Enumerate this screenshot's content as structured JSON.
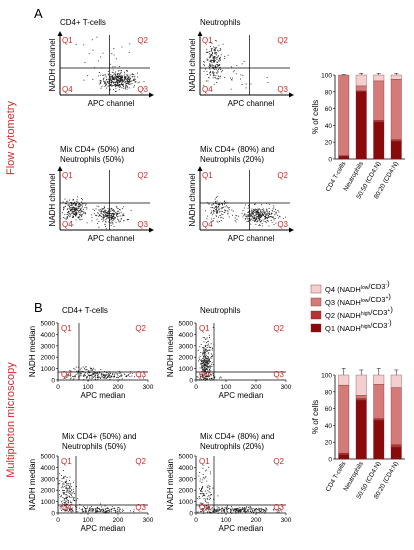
{
  "panels": [
    {
      "letter": "A",
      "section_label": "Flow cytometry",
      "x_axis_label": "APC channel",
      "y_axis_label": "NADH channel",
      "quadrants": [
        "Q1",
        "Q2",
        "Q4",
        "Q3"
      ],
      "plots": [
        {
          "title_lines": [
            "CD4+ T-cells"
          ]
        },
        {
          "title_lines": [
            "Neutrophils"
          ]
        },
        {
          "title_lines": [
            "Mix CD4+ (50%) and",
            "Neutrophils (50%)"
          ]
        },
        {
          "title_lines": [
            "Mix CD4+ (80%) and",
            "Neutrophils (20%)"
          ]
        }
      ]
    },
    {
      "letter": "B",
      "section_label": "Multiphoton microscopy",
      "x_axis_label": "APC median",
      "y_axis_label": "NADH median",
      "quadrants": [
        "Q1",
        "Q2",
        "Q4",
        "Q3"
      ],
      "plots": [
        {
          "title_lines": [
            "CD4+ T-cells"
          ]
        },
        {
          "title_lines": [
            "Neutrophils"
          ]
        },
        {
          "title_lines": [
            "Mix CD4+ (50%) and",
            "Neutrophils (50%)"
          ]
        },
        {
          "title_lines": [
            "Mix CD4+ (80%) and",
            "Neutrophils (20%)"
          ]
        }
      ]
    }
  ],
  "legend": [
    {
      "label": "Q4 (NADH",
      "sup1": "low",
      "mid": "/CD3",
      "sup2": "-",
      "end": ")",
      "color": "#f4cfcf"
    },
    {
      "label": "Q3 (NADH",
      "sup1": "low",
      "mid": "/CD3",
      "sup2": "+",
      "end": ")",
      "color": "#d47a78"
    },
    {
      "label": "Q2 (NADH",
      "sup1": "high",
      "mid": "/CD3",
      "sup2": "+",
      "end": ")",
      "color": "#b73234"
    },
    {
      "label": "Q1 (NADH",
      "sup1": "high",
      "mid": "/CD3",
      "sup2": "-",
      "end": ")",
      "color": "#8a0a0c"
    }
  ],
  "colors": {
    "accent_red": "#d22b2b",
    "dot": "#1a1a1a"
  },
  "chart_data": [
    {
      "type": "scatter",
      "panel": "B",
      "title": "CD4+ T-cells",
      "xlabel": "APC median",
      "ylabel": "NADH median",
      "xlim": [
        0,
        300
      ],
      "ylim": [
        0,
        5000
      ],
      "xticks": [
        0,
        100,
        200,
        300
      ],
      "yticks": [
        0,
        1000,
        2000,
        3000,
        4000,
        5000
      ],
      "gates": {
        "x": 70,
        "y": 700
      },
      "clusters": [
        {
          "cx": 130,
          "cy": 400,
          "sx": 55,
          "sy": 180,
          "n": 200
        },
        {
          "cx": 90,
          "cy": 900,
          "sx": 30,
          "sy": 250,
          "n": 50
        }
      ]
    },
    {
      "type": "scatter",
      "panel": "B",
      "title": "Neutrophils",
      "xlabel": "APC median",
      "ylabel": "NADH median",
      "xlim": [
        0,
        300
      ],
      "ylim": [
        0,
        5000
      ],
      "xticks": [
        0,
        100,
        200,
        300
      ],
      "yticks": [
        0,
        1000,
        2000,
        3000,
        4000,
        5000
      ],
      "gates": {
        "x": 60,
        "y": 700
      },
      "clusters": [
        {
          "cx": 30,
          "cy": 1400,
          "sx": 10,
          "sy": 800,
          "n": 260
        },
        {
          "cx": 40,
          "cy": 3000,
          "sx": 10,
          "sy": 600,
          "n": 40
        },
        {
          "cx": 45,
          "cy": 300,
          "sx": 20,
          "sy": 150,
          "n": 30
        }
      ]
    },
    {
      "type": "scatter",
      "panel": "B",
      "title": "Mix CD4+ (50%) and Neutrophils (50%)",
      "xlabel": "APC median",
      "ylabel": "NADH median",
      "xlim": [
        0,
        300
      ],
      "ylim": [
        0,
        5000
      ],
      "xticks": [
        0,
        100,
        200,
        300
      ],
      "yticks": [
        0,
        1000,
        2000,
        3000,
        4000,
        5000
      ],
      "gates": {
        "x": 60,
        "y": 700
      },
      "clusters": [
        {
          "cx": 25,
          "cy": 1700,
          "sx": 14,
          "sy": 900,
          "n": 160
        },
        {
          "cx": 120,
          "cy": 300,
          "sx": 55,
          "sy": 150,
          "n": 170
        }
      ]
    },
    {
      "type": "scatter",
      "panel": "B",
      "title": "Mix CD4+ (80%) and Neutrophils (20%)",
      "xlabel": "APC median",
      "ylabel": "NADH median",
      "xlim": [
        0,
        300
      ],
      "ylim": [
        0,
        5000
      ],
      "xticks": [
        0,
        100,
        200,
        300
      ],
      "yticks": [
        0,
        1000,
        2000,
        3000,
        4000,
        5000
      ],
      "gates": {
        "x": 60,
        "y": 700
      },
      "clusters": [
        {
          "cx": 30,
          "cy": 1800,
          "sx": 16,
          "sy": 1000,
          "n": 110
        },
        {
          "cx": 130,
          "cy": 300,
          "sx": 60,
          "sy": 150,
          "n": 260
        }
      ]
    },
    {
      "type": "bar",
      "panel": "A",
      "stacked": true,
      "ylabel": "% of cells",
      "ylim": [
        0,
        100
      ],
      "yticks": [
        0,
        20,
        40,
        60,
        80,
        100
      ],
      "categories": [
        "CD4 T-cells",
        "Neutrophils",
        "50:50 (CD4:N)",
        "80:20 (CD4:N)"
      ],
      "series": [
        {
          "name": "Q1 (NADHhigh/CD3-)",
          "values": [
            3,
            80,
            44,
            21
          ],
          "errors": [
            0.5,
            2,
            3,
            2
          ]
        },
        {
          "name": "Q2 (NADHhigh/CD3+)",
          "values": [
            1,
            1,
            2,
            2
          ],
          "errors": [
            0,
            0,
            0,
            0
          ]
        },
        {
          "name": "Q3 (NADHlow/CD3+)",
          "values": [
            95,
            6,
            47,
            72
          ],
          "errors": [
            1,
            1,
            2,
            2
          ]
        },
        {
          "name": "Q4 (NADHlow/CD3-)",
          "values": [
            1,
            13,
            7,
            5
          ],
          "errors": [
            0.5,
            2,
            2,
            2
          ]
        }
      ]
    },
    {
      "type": "bar",
      "panel": "B",
      "stacked": true,
      "ylabel": "% of cells",
      "ylim": [
        0,
        100
      ],
      "yticks": [
        0,
        20,
        40,
        60,
        80,
        100
      ],
      "categories": [
        "CD4 T-cells",
        "Neutrophils",
        "50:50 (CD4:N)",
        "80:20 (CD4:N)"
      ],
      "series": [
        {
          "name": "Q1 (NADHhigh/CD3-)",
          "values": [
            5,
            70,
            46,
            14
          ],
          "errors": [
            12,
            4,
            20,
            4
          ]
        },
        {
          "name": "Q2 (NADHhigh/CD3+)",
          "values": [
            2,
            2,
            2,
            3
          ],
          "errors": [
            0,
            0,
            0,
            0
          ]
        },
        {
          "name": "Q3 (NADHlow/CD3+)",
          "values": [
            81,
            4,
            41,
            68
          ],
          "errors": [
            10,
            2,
            10,
            6
          ]
        },
        {
          "name": "Q4 (NADHlow/CD3-)",
          "values": [
            12,
            24,
            11,
            15
          ],
          "errors": [
            8,
            6,
            8,
            6
          ]
        }
      ]
    }
  ]
}
